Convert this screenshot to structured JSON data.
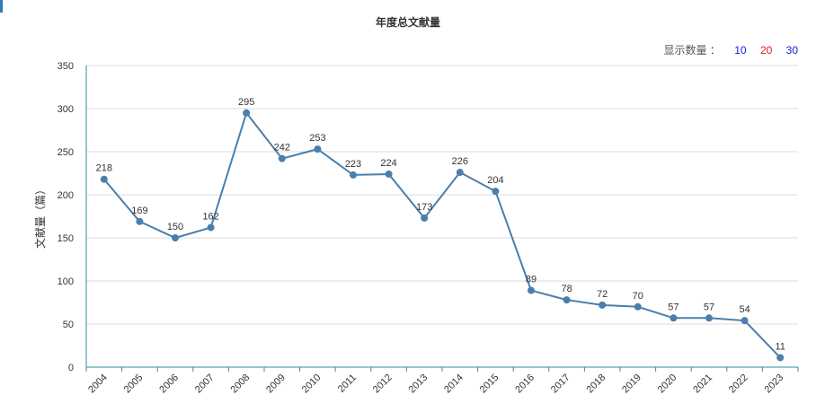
{
  "chart_data": {
    "type": "line",
    "title": "年度总文献量",
    "ylabel": "文献量（篇）",
    "xlabel": "",
    "x": [
      "2004",
      "2005",
      "2006",
      "2007",
      "2008",
      "2009",
      "2010",
      "2011",
      "2012",
      "2013",
      "2014",
      "2015",
      "2016",
      "2017",
      "2018",
      "2019",
      "2020",
      "2021",
      "2022",
      "2023"
    ],
    "values": [
      218,
      169,
      150,
      162,
      295,
      242,
      253,
      223,
      224,
      173,
      226,
      204,
      89,
      78,
      72,
      70,
      57,
      57,
      54,
      11
    ],
    "ylim": [
      0,
      350
    ],
    "yticks": [
      0,
      50,
      100,
      150,
      200,
      250,
      300,
      350
    ],
    "grid": true,
    "line_color": "#4a7eac"
  },
  "controls": {
    "display_label": "显示数量 ：",
    "options": [
      {
        "label": "10",
        "color": "#1a1adb"
      },
      {
        "label": "20",
        "color": "#d81a1a"
      },
      {
        "label": "30",
        "color": "#1a1adb"
      }
    ]
  }
}
